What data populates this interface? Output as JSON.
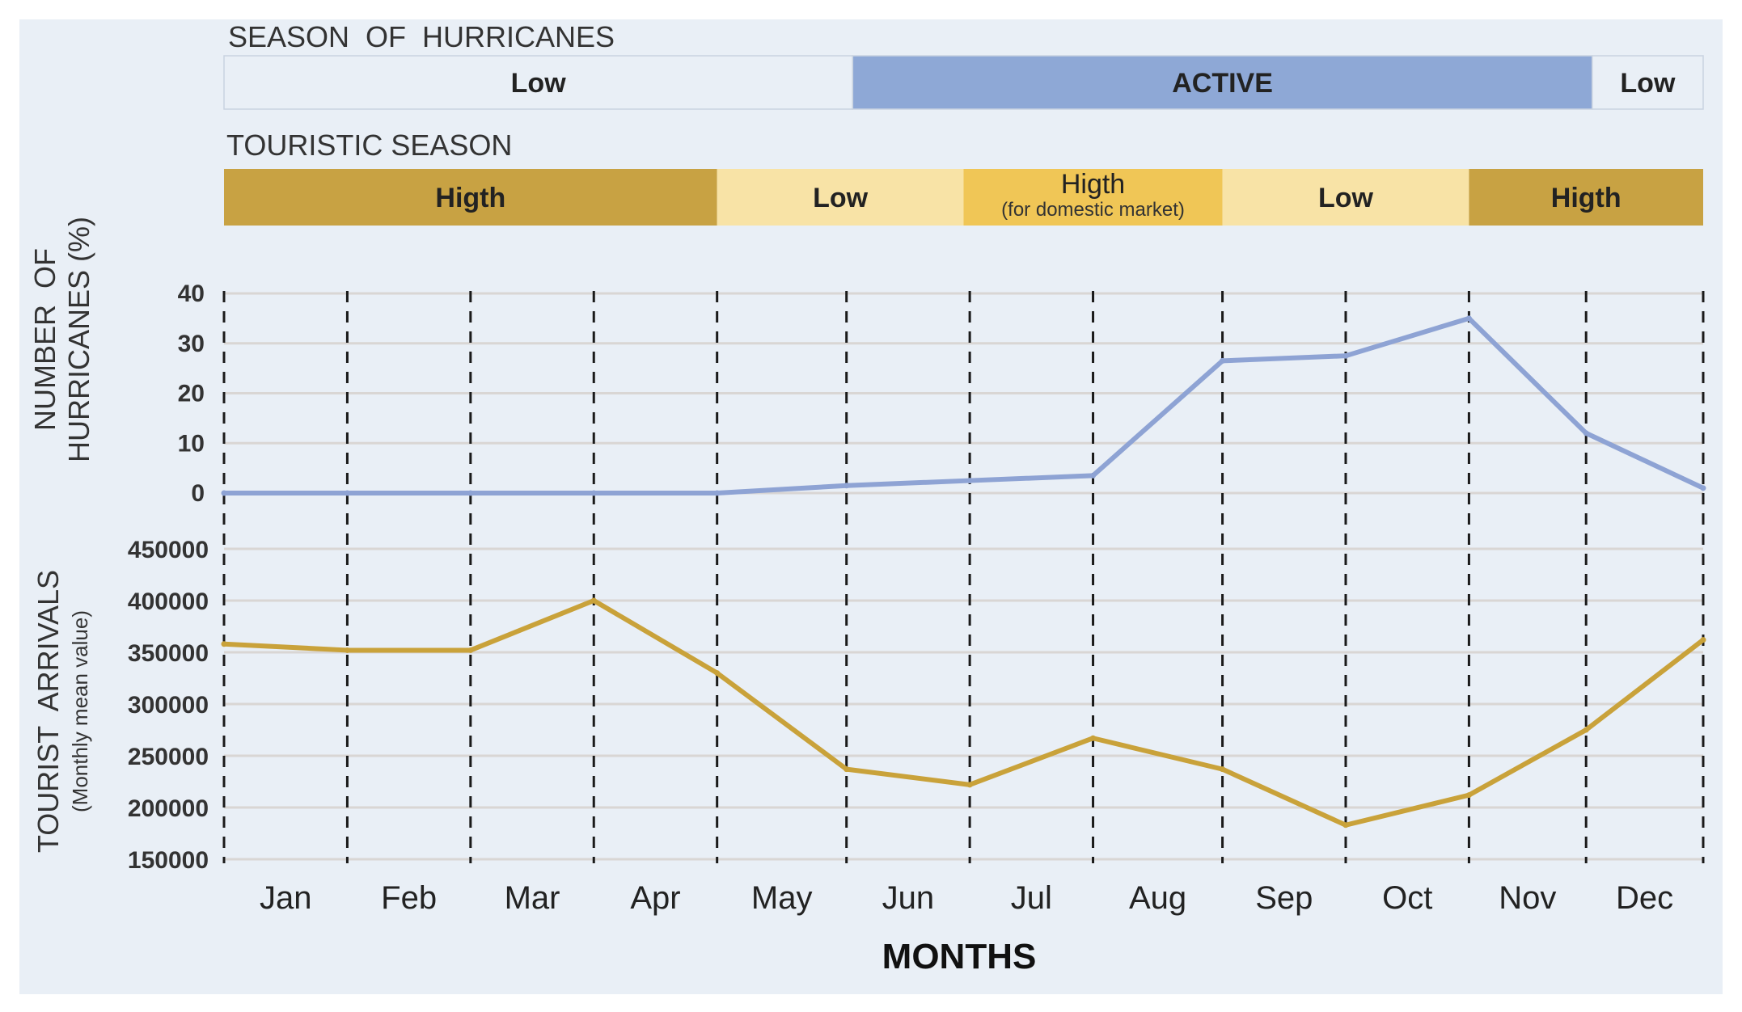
{
  "chart_data": {
    "type": "line",
    "hurricane_season": {
      "title": "SEASON  OF  HURRICANES",
      "bands": [
        {
          "label": "Low",
          "from_month": 0,
          "to_month": 5.1,
          "color": "#e9eff6"
        },
        {
          "label": "ACTIVE",
          "from_month": 5.1,
          "to_month": 11.1,
          "color": "#8ea8d6"
        },
        {
          "label": "Low",
          "from_month": 11.1,
          "to_month": 12,
          "color": "#e9eff6"
        }
      ]
    },
    "touristic_season": {
      "title": "TOURISTIC SEASON",
      "bands": [
        {
          "label": "Higth",
          "sublabel": "",
          "from_month": 0,
          "to_month": 4,
          "color": "#c8a243"
        },
        {
          "label": "Low",
          "sublabel": "",
          "from_month": 4,
          "to_month": 6,
          "color": "#f8e3a6"
        },
        {
          "label": "Higth",
          "sublabel": "(for domestic market)",
          "from_month": 6,
          "to_month": 8.1,
          "color": "#f0c656"
        },
        {
          "label": "Low",
          "sublabel": "",
          "from_month": 8.1,
          "to_month": 10.1,
          "color": "#f8e3a6"
        },
        {
          "label": "Higth",
          "sublabel": "",
          "from_month": 10.1,
          "to_month": 12,
          "color": "#c8a243"
        }
      ]
    },
    "months": [
      "Jan",
      "Feb",
      "Mar",
      "Apr",
      "May",
      "Jun",
      "Jul",
      "Aug",
      "Sep",
      "Oct",
      "Nov",
      "Dec"
    ],
    "xlabel": "MONTHS",
    "hurricanes": {
      "ylabel": [
        "NUMBER  OF",
        "HURRICANES (%)"
      ],
      "ylim": [
        0,
        40
      ],
      "ticks": [
        "0",
        "10",
        "20",
        "30",
        "40"
      ],
      "x": [
        0,
        1,
        2,
        3,
        4,
        5.05,
        6.05,
        7.05,
        8.1,
        9.1,
        10.1,
        11.05,
        12
      ],
      "values": [
        0,
        0,
        0,
        0,
        0,
        1.5,
        2.5,
        3.5,
        26.5,
        27.5,
        35,
        12,
        1
      ],
      "color": "#8ea3d4"
    },
    "arrivals": {
      "ylabel": [
        "TOURIST  ARRIVALS",
        "(Monthly mean value)"
      ],
      "ylim": [
        150000,
        450000
      ],
      "ticks": [
        "150000",
        "200000",
        "250000",
        "300000",
        "350000",
        "400000",
        "450000"
      ],
      "x": [
        0,
        1,
        2,
        3,
        4,
        5.05,
        6.05,
        7.05,
        8.1,
        9.1,
        10.1,
        11.05,
        12
      ],
      "values": [
        358000,
        352000,
        352000,
        400000,
        330000,
        237000,
        222000,
        267000,
        237000,
        183000,
        212000,
        275000,
        362000
      ],
      "color": "#c9a23a"
    }
  },
  "colors": {
    "background": "#e9eff6",
    "grid": "#d9d6d4",
    "divider": "#1a1a1a"
  }
}
